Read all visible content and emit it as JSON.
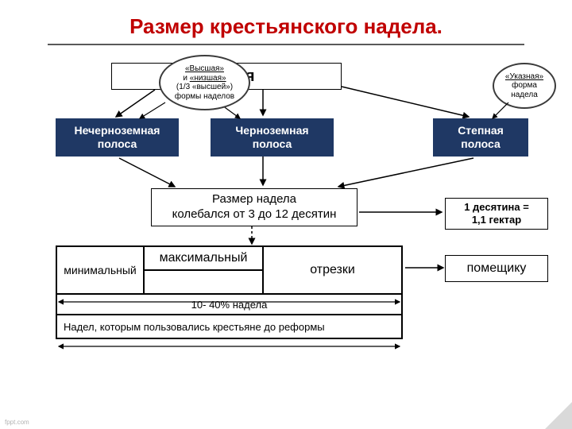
{
  "title": "Размер крестьянского надела.",
  "russia": "Россия",
  "bubble_left_html": "<u>«Высшая»</u><br>и <u>«низшая»</u><br>(1/3 «высшей»)<br>формы наделов",
  "bubble_right_html": "<u>«Указная»</u><br>форма<br>надела",
  "zones": {
    "z1": "Нечерноземная\nполоса",
    "z2": "Черноземная\nполоса",
    "z3": "Степная\nполоса"
  },
  "size_box": "Размер надела\nколебался от 3 до 12 десятин",
  "desyatina": "1 десятина =\n1,1 гектар",
  "landlord": "помещику",
  "table": {
    "max": "максимальный",
    "min": "минимальный",
    "otrezki": "отрезки",
    "percent": "10- 40% надела",
    "prereform": "Надел, которым пользовались крестьяне до реформы"
  },
  "colors": {
    "title": "#c00000",
    "rule": "#595959",
    "zone_bg": "#1f3864",
    "zone_fg": "#ffffff",
    "arrow": "#000000"
  },
  "footer": "fppt.com"
}
